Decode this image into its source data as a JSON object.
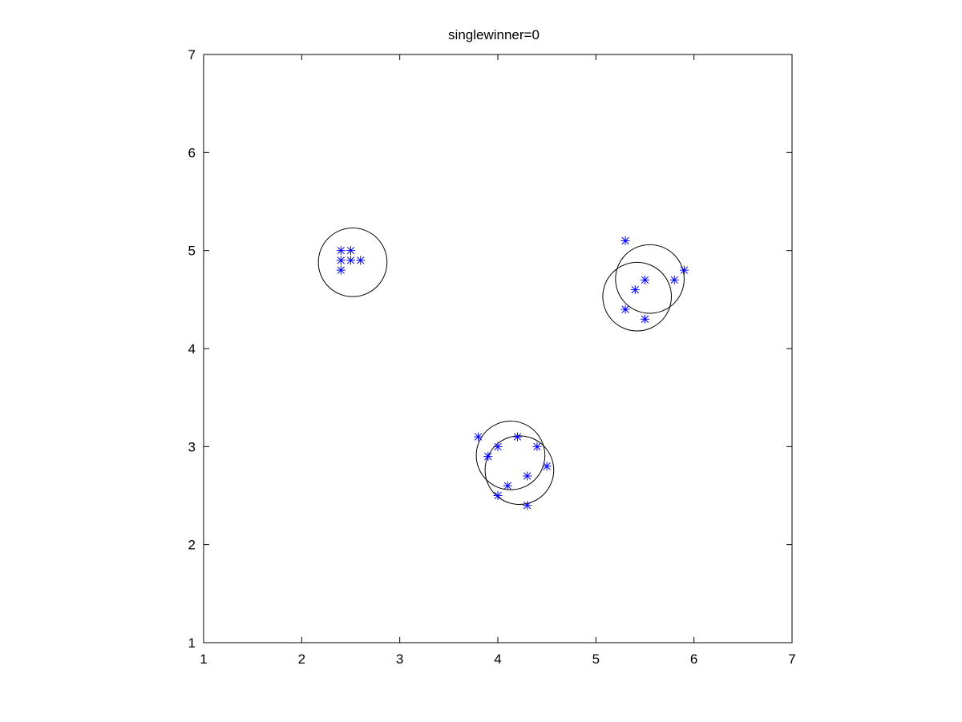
{
  "chart_data": {
    "type": "scatter",
    "title": "singlewinner=0",
    "xlabel": "",
    "ylabel": "",
    "xlim": [
      1,
      7
    ],
    "ylim": [
      1,
      7
    ],
    "xticks": [
      1,
      2,
      3,
      4,
      5,
      6,
      7
    ],
    "yticks": [
      1,
      2,
      3,
      4,
      5,
      6,
      7
    ],
    "grid": false,
    "marker_color": "#0000ff",
    "circle_color": "#000000",
    "points": [
      {
        "x": 2.4,
        "y": 5.0
      },
      {
        "x": 2.5,
        "y": 5.0
      },
      {
        "x": 2.4,
        "y": 4.9
      },
      {
        "x": 2.5,
        "y": 4.9
      },
      {
        "x": 2.6,
        "y": 4.9
      },
      {
        "x": 2.4,
        "y": 4.8
      },
      {
        "x": 5.3,
        "y": 5.1
      },
      {
        "x": 5.9,
        "y": 4.8
      },
      {
        "x": 5.5,
        "y": 4.7
      },
      {
        "x": 5.8,
        "y": 4.7
      },
      {
        "x": 5.4,
        "y": 4.6
      },
      {
        "x": 5.3,
        "y": 4.4
      },
      {
        "x": 5.5,
        "y": 4.3
      },
      {
        "x": 3.8,
        "y": 3.1
      },
      {
        "x": 4.2,
        "y": 3.1
      },
      {
        "x": 4.0,
        "y": 3.0
      },
      {
        "x": 4.4,
        "y": 3.0
      },
      {
        "x": 3.9,
        "y": 2.9
      },
      {
        "x": 4.5,
        "y": 2.8
      },
      {
        "x": 4.3,
        "y": 2.7
      },
      {
        "x": 4.1,
        "y": 2.6
      },
      {
        "x": 4.0,
        "y": 2.5
      },
      {
        "x": 4.3,
        "y": 2.4
      }
    ],
    "circles": [
      {
        "cx": 2.52,
        "cy": 4.88,
        "r": 0.35
      },
      {
        "cx": 5.55,
        "cy": 4.71,
        "r": 0.35
      },
      {
        "cx": 5.42,
        "cy": 4.53,
        "r": 0.35
      },
      {
        "cx": 4.13,
        "cy": 2.91,
        "r": 0.35
      },
      {
        "cx": 4.22,
        "cy": 2.76,
        "r": 0.35
      }
    ]
  }
}
